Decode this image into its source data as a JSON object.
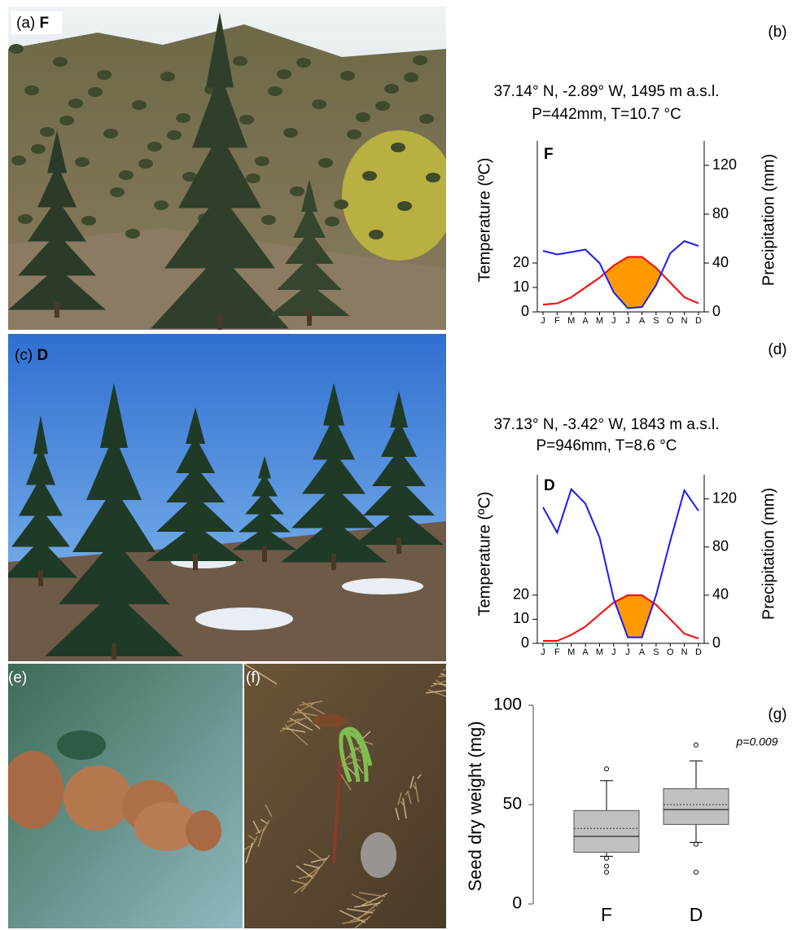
{
  "panels": {
    "a": "(a)",
    "a_site": "F",
    "c": "(c)",
    "c_site": "D",
    "e": "(e)",
    "f": "(f)"
  },
  "chart_data": [
    {
      "type": "climate",
      "label": "(b)",
      "title": "37.14° N, -2.89° W, 1495 m a.s.l.",
      "subtitle": "P=442mm, T=10.7 °C",
      "site": "F",
      "categories": [
        "J",
        "F",
        "M",
        "A",
        "M",
        "J",
        "J",
        "A",
        "S",
        "O",
        "N",
        "D"
      ],
      "ylabel": "Temperature (ºC)",
      "y2label": "Precipitation (mm)",
      "ylim": [
        0,
        70
      ],
      "yticks": [
        0,
        10,
        20
      ],
      "y2lim": [
        0,
        140
      ],
      "y2ticks": [
        0,
        40,
        80,
        120
      ],
      "fill_color": "#ff9900",
      "series": [
        {
          "color": "#ff0000",
          "values": [
            3,
            3.5,
            6,
            10,
            14,
            19,
            22.5,
            22.5,
            18,
            12,
            6,
            3.5
          ]
        },
        {
          "color": "#1a1aff",
          "axis": "y2",
          "values": [
            50,
            47,
            49,
            51,
            40,
            16,
            3,
            4,
            22,
            48,
            58,
            54
          ]
        }
      ]
    },
    {
      "type": "climate",
      "label": "(d)",
      "title": "37.13° N, -3.42° W, 1843 m a.s.l.",
      "subtitle": "P=946mm, T=8.6 °C",
      "site": "D",
      "categories": [
        "J",
        "F",
        "M",
        "A",
        "M",
        "J",
        "J",
        "A",
        "S",
        "O",
        "N",
        "D"
      ],
      "ylabel": "Temperature (ºC)",
      "y2label": "Precipitation (mm)",
      "ylim": [
        0,
        70
      ],
      "yticks": [
        0,
        10,
        20
      ],
      "y2lim": [
        0,
        140
      ],
      "y2ticks": [
        0,
        40,
        80,
        120
      ],
      "fill_color": "#ff9900",
      "series": [
        {
          "color": "#ff0000",
          "values": [
            1,
            1,
            3.5,
            7,
            12,
            17,
            20,
            20,
            16,
            10,
            4,
            2
          ]
        },
        {
          "color": "#1a1aff",
          "axis": "y2",
          "values": [
            113,
            92,
            128,
            116,
            88,
            37,
            5,
            5,
            40,
            85,
            127,
            110
          ]
        }
      ]
    },
    {
      "type": "box",
      "label": "(g)",
      "ylabel": "Seed dry weight (mg)",
      "ylim": [
        0,
        100
      ],
      "yticks": [
        0,
        50,
        100
      ],
      "annotation": "p=0.009",
      "color": "#c0c0c0",
      "boxes": [
        {
          "name": "F",
          "whisker_low": 24,
          "q1": 26,
          "median": 34,
          "mean": 38,
          "q3": 47,
          "whisker_high": 62,
          "outliers": [
            68,
            23,
            19,
            16
          ]
        },
        {
          "name": "D",
          "whisker_low": 31,
          "q1": 40,
          "median": 47.5,
          "mean": 50,
          "q3": 58,
          "whisker_high": 72,
          "outliers": [
            80,
            30,
            16
          ]
        }
      ]
    }
  ]
}
